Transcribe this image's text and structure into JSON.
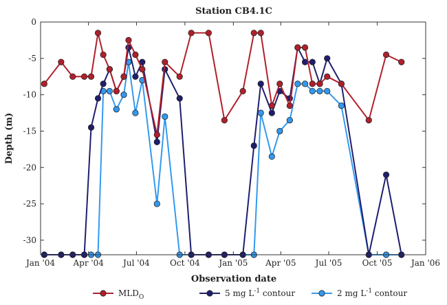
{
  "chart_data": {
    "type": "line",
    "title": "Station CB4.1C",
    "xlabel": "Observation date",
    "ylabel": "Depth (m)",
    "xlim": [
      "2004-01-01",
      "2006-01-01"
    ],
    "ylim": [
      -32,
      0
    ],
    "x_ticks": [
      {
        "date": "2004-01-01",
        "label": "Jan '04"
      },
      {
        "date": "2004-04-01",
        "label": "Apr '04"
      },
      {
        "date": "2004-07-01",
        "label": "Jul '04"
      },
      {
        "date": "2004-10-01",
        "label": "Oct '04"
      },
      {
        "date": "2005-01-01",
        "label": "Jan '05"
      },
      {
        "date": "2005-04-01",
        "label": "Apr '05"
      },
      {
        "date": "2005-07-01",
        "label": "Jul '05"
      },
      {
        "date": "2005-10-01",
        "label": "Oct '05"
      },
      {
        "date": "2006-01-01",
        "label": "Jan '06"
      }
    ],
    "y_ticks": [
      0,
      -5,
      -10,
      -15,
      -20,
      -25,
      -30
    ],
    "grid": false,
    "legend_position": "bottom",
    "series": [
      {
        "name": "MLD",
        "name_sub": "O",
        "color": "#b0202c",
        "points": [
          {
            "x": "2004-01-08",
            "y": -8.5
          },
          {
            "x": "2004-02-09",
            "y": -5.5
          },
          {
            "x": "2004-03-02",
            "y": -7.5
          },
          {
            "x": "2004-03-24",
            "y": -7.5
          },
          {
            "x": "2004-04-06",
            "y": -7.5
          },
          {
            "x": "2004-04-19",
            "y": -1.5
          },
          {
            "x": "2004-04-29",
            "y": -4.5
          },
          {
            "x": "2004-05-11",
            "y": -6.5
          },
          {
            "x": "2004-05-24",
            "y": -9.5
          },
          {
            "x": "2004-06-07",
            "y": -7.5
          },
          {
            "x": "2004-06-16",
            "y": -2.5
          },
          {
            "x": "2004-06-29",
            "y": -4.5
          },
          {
            "x": "2004-07-12",
            "y": -6.5
          },
          {
            "x": "2004-08-09",
            "y": -15.5
          },
          {
            "x": "2004-08-24",
            "y": -5.5
          },
          {
            "x": "2004-09-21",
            "y": -7.5
          },
          {
            "x": "2004-10-13",
            "y": -1.5
          },
          {
            "x": "2004-11-15",
            "y": -1.5
          },
          {
            "x": "2004-12-15",
            "y": -13.5
          },
          {
            "x": "2005-01-19",
            "y": -9.5
          },
          {
            "x": "2005-02-09",
            "y": -1.5
          },
          {
            "x": "2005-02-22",
            "y": -1.5
          },
          {
            "x": "2005-03-15",
            "y": -11.5
          },
          {
            "x": "2005-03-30",
            "y": -8.5
          },
          {
            "x": "2005-04-18",
            "y": -11.5
          },
          {
            "x": "2005-05-03",
            "y": -3.5
          },
          {
            "x": "2005-05-17",
            "y": -3.5
          },
          {
            "x": "2005-05-31",
            "y": -8.5
          },
          {
            "x": "2005-06-14",
            "y": -8.5
          },
          {
            "x": "2005-06-28",
            "y": -7.5
          },
          {
            "x": "2005-07-25",
            "y": -8.5
          },
          {
            "x": "2005-09-15",
            "y": -13.5
          },
          {
            "x": "2005-10-18",
            "y": -4.5
          },
          {
            "x": "2005-11-16",
            "y": -5.5
          }
        ]
      },
      {
        "name": "5 mg L",
        "name_sup": "-1",
        "name_suffix": " contour",
        "color": "#1e1e6e",
        "points": [
          {
            "x": "2004-01-08",
            "y": -32
          },
          {
            "x": "2004-02-09",
            "y": -32
          },
          {
            "x": "2004-03-02",
            "y": -32
          },
          {
            "x": "2004-03-24",
            "y": -32
          },
          {
            "x": "2004-04-06",
            "y": -14.5
          },
          {
            "x": "2004-04-19",
            "y": -10.5
          },
          {
            "x": "2004-04-29",
            "y": -8.5
          },
          {
            "x": "2004-05-11",
            "y": -6.5
          },
          {
            "x": "2004-05-24",
            "y": -9.5
          },
          {
            "x": "2004-06-07",
            "y": -7.5
          },
          {
            "x": "2004-06-16",
            "y": -3.5
          },
          {
            "x": "2004-06-29",
            "y": -7.5
          },
          {
            "x": "2004-07-12",
            "y": -5.5
          },
          {
            "x": "2004-08-09",
            "y": -16.5
          },
          {
            "x": "2004-08-24",
            "y": -6.5
          },
          {
            "x": "2004-09-21",
            "y": -10.5
          },
          {
            "x": "2004-10-13",
            "y": -32
          },
          {
            "x": "2004-11-15",
            "y": -32
          },
          {
            "x": "2004-12-15",
            "y": -32
          },
          {
            "x": "2005-01-19",
            "y": -32
          },
          {
            "x": "2005-02-09",
            "y": -17
          },
          {
            "x": "2005-02-22",
            "y": -8.5
          },
          {
            "x": "2005-03-15",
            "y": -12.5
          },
          {
            "x": "2005-03-30",
            "y": -9.5
          },
          {
            "x": "2005-04-18",
            "y": -10.5
          },
          {
            "x": "2005-05-03",
            "y": -3.5
          },
          {
            "x": "2005-05-17",
            "y": -5.5
          },
          {
            "x": "2005-05-31",
            "y": -5.5
          },
          {
            "x": "2005-06-14",
            "y": -8.5
          },
          {
            "x": "2005-06-28",
            "y": -5
          },
          {
            "x": "2005-07-25",
            "y": -8.5
          },
          {
            "x": "2005-09-15",
            "y": -32
          },
          {
            "x": "2005-10-18",
            "y": -21
          },
          {
            "x": "2005-11-16",
            "y": -32
          }
        ]
      },
      {
        "name": "2 mg L",
        "name_sup": "-1",
        "name_suffix": " contour",
        "color": "#3399ee",
        "points": [
          {
            "x": "2004-01-08",
            "y": -32
          },
          {
            "x": "2004-02-09",
            "y": -32
          },
          {
            "x": "2004-03-02",
            "y": -32
          },
          {
            "x": "2004-03-24",
            "y": -32
          },
          {
            "x": "2004-04-06",
            "y": -32
          },
          {
            "x": "2004-04-19",
            "y": -32
          },
          {
            "x": "2004-04-29",
            "y": -9.5
          },
          {
            "x": "2004-05-11",
            "y": -9.5
          },
          {
            "x": "2004-05-24",
            "y": -12
          },
          {
            "x": "2004-06-07",
            "y": -10
          },
          {
            "x": "2004-06-16",
            "y": -5.5
          },
          {
            "x": "2004-06-29",
            "y": -12.5
          },
          {
            "x": "2004-07-12",
            "y": -8
          },
          {
            "x": "2004-08-09",
            "y": -25
          },
          {
            "x": "2004-08-24",
            "y": -13
          },
          {
            "x": "2004-09-21",
            "y": -32
          },
          {
            "x": "2004-10-13",
            "y": -32
          },
          {
            "x": "2004-11-15",
            "y": -32
          },
          {
            "x": "2004-12-15",
            "y": -32
          },
          {
            "x": "2005-01-19",
            "y": -32
          },
          {
            "x": "2005-02-09",
            "y": -32
          },
          {
            "x": "2005-02-22",
            "y": -12.5
          },
          {
            "x": "2005-03-15",
            "y": -18.5
          },
          {
            "x": "2005-03-30",
            "y": -15
          },
          {
            "x": "2005-04-18",
            "y": -13.5
          },
          {
            "x": "2005-05-03",
            "y": -8.5
          },
          {
            "x": "2005-05-17",
            "y": -8.5
          },
          {
            "x": "2005-05-31",
            "y": -9.5
          },
          {
            "x": "2005-06-14",
            "y": -9.5
          },
          {
            "x": "2005-06-28",
            "y": -9.5
          },
          {
            "x": "2005-07-25",
            "y": -11.5
          },
          {
            "x": "2005-09-15",
            "y": -32
          },
          {
            "x": "2005-10-18",
            "y": -32
          },
          {
            "x": "2005-11-16",
            "y": -32
          }
        ]
      }
    ]
  }
}
